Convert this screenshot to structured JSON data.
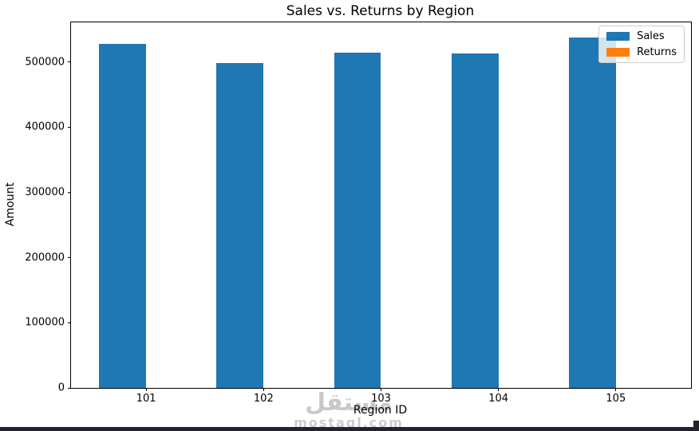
{
  "page": {
    "bottom_bar_color": "#23232b"
  },
  "chart_data": {
    "type": "bar",
    "title": "Sales vs. Returns by Region",
    "xlabel": "Region ID",
    "ylabel": "Amount",
    "categories": [
      "101",
      "102",
      "103",
      "104",
      "105"
    ],
    "series": [
      {
        "name": "Sales",
        "color": "#1f77b4",
        "values": [
          528000,
          499000,
          514000,
          513000,
          538000
        ]
      },
      {
        "name": "Returns",
        "color": "#ff7f0e",
        "values": [
          0,
          0,
          0,
          0,
          0
        ]
      }
    ],
    "bar_group_width": 0.4,
    "ylim": [
      0,
      561000
    ],
    "ytick_values": [
      0,
      100000,
      200000,
      300000,
      400000,
      500000
    ],
    "ytick_labels": [
      "0",
      "100000",
      "200000",
      "300000",
      "400000",
      "500000"
    ],
    "grid": false,
    "legend_position": "upper-right"
  },
  "watermark": {
    "registered_mark": "®",
    "brand_arabic": "مستقل",
    "brand_latin": "mostaql.com"
  }
}
